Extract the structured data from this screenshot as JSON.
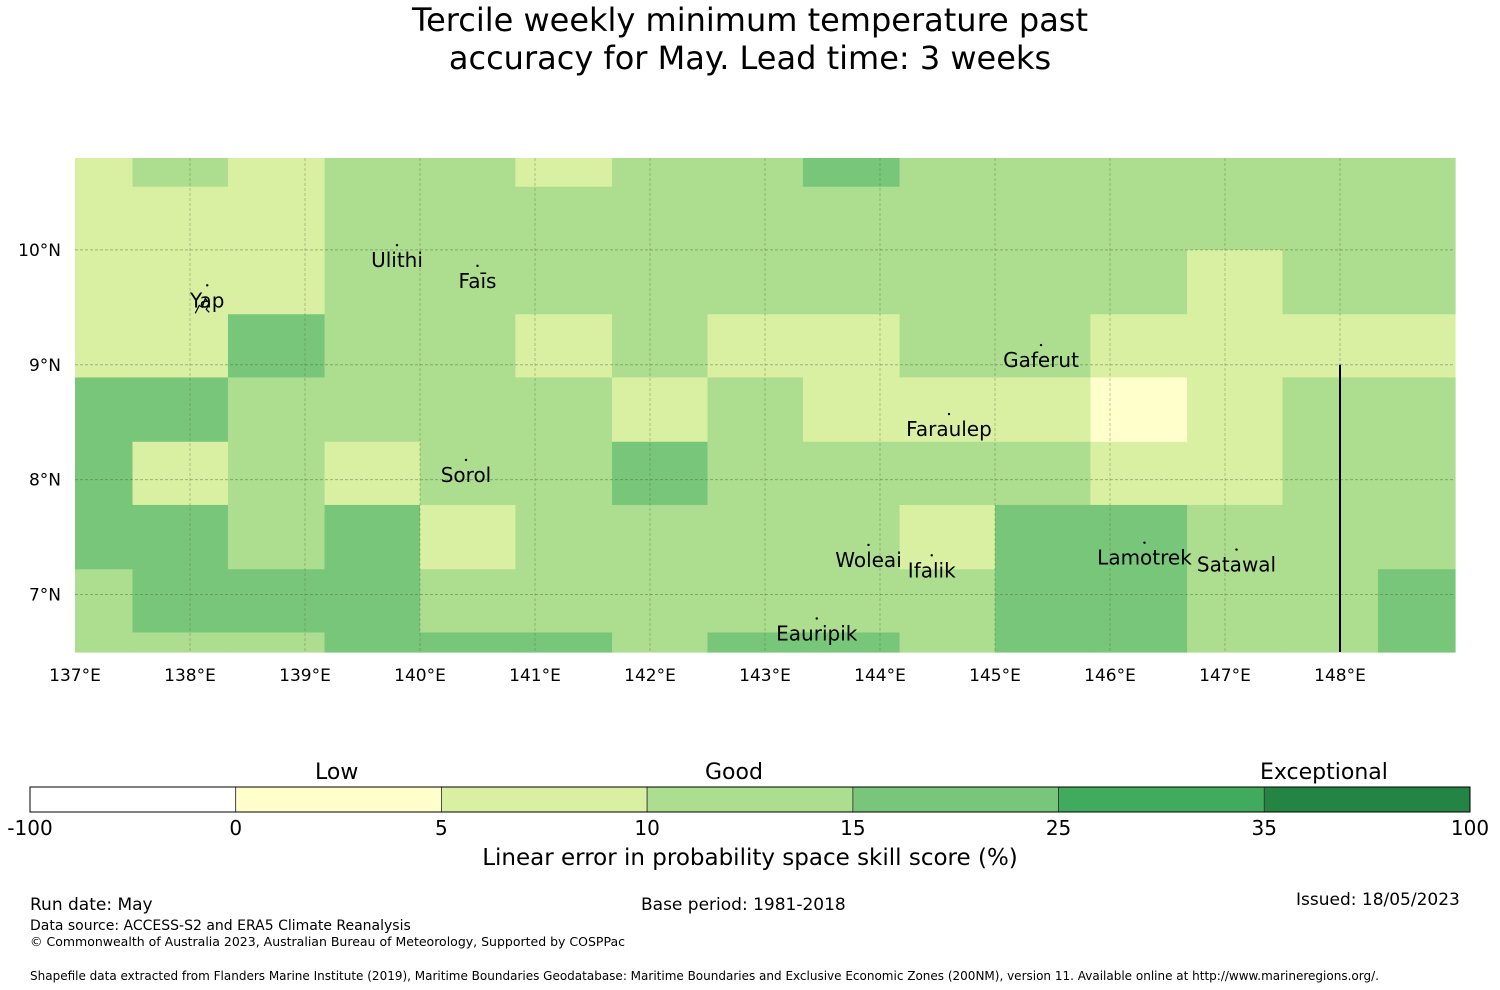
{
  "title": {
    "line1": "Tercile weekly minimum temperature past",
    "line2": "accuracy for May. Lead time: 3 weeks"
  },
  "map": {
    "lon_range": [
      137.0,
      149.0
    ],
    "lat_range": [
      6.5,
      10.8
    ],
    "x_ticks": [
      "137°E",
      "138°E",
      "139°E",
      "140°E",
      "141°E",
      "142°E",
      "143°E",
      "144°E",
      "145°E",
      "146°E",
      "147°E",
      "148°E"
    ],
    "x_tick_values": [
      137,
      138,
      139,
      140,
      141,
      142,
      143,
      144,
      145,
      146,
      147,
      148
    ],
    "y_ticks": [
      "10°N",
      "9°N",
      "8°N",
      "7°N"
    ],
    "y_tick_values": [
      10,
      9,
      8,
      7
    ],
    "grid": true,
    "places": [
      {
        "name": "Ulithi",
        "lon": 139.8,
        "lat": 9.85
      },
      {
        "name": "Faīs",
        "lon": 140.5,
        "lat": 9.67
      },
      {
        "name": "Yap",
        "lon": 138.15,
        "lat": 9.5
      },
      {
        "name": "Gaferut",
        "lon": 145.4,
        "lat": 8.98
      },
      {
        "name": "Faraulep",
        "lon": 144.6,
        "lat": 8.38
      },
      {
        "name": "Sorol",
        "lon": 140.4,
        "lat": 7.98
      },
      {
        "name": "Woleai",
        "lon": 143.9,
        "lat": 7.24
      },
      {
        "name": "Ifalik",
        "lon": 144.45,
        "lat": 7.15
      },
      {
        "name": "Lamotrek",
        "lon": 146.3,
        "lat": 7.26
      },
      {
        "name": "Satawal",
        "lon": 147.1,
        "lat": 7.2
      },
      {
        "name": "Eauripik",
        "lon": 143.45,
        "lat": 6.6
      }
    ],
    "boundary_line": {
      "lon": 148.0,
      "lat_from": 6.5,
      "lat_to": 9.0
    }
  },
  "grid_cells": {
    "col_lon_edges": [
      137.0,
      137.5,
      138.33,
      139.17,
      140.0,
      140.83,
      141.67,
      142.5,
      143.33,
      144.17,
      145.0,
      145.83,
      146.67,
      147.5,
      148.33,
      149.0
    ],
    "row_lat_edges": [
      10.8,
      10.55,
      10.0,
      9.44,
      8.89,
      8.33,
      7.78,
      7.22,
      6.67,
      6.5
    ],
    "levels_legend": "1=0-5, 2=5-10, 3=10-15, 4=15-25",
    "rows": [
      [
        2,
        3,
        2,
        3,
        3,
        2,
        3,
        3,
        4,
        3,
        3,
        3,
        3,
        3,
        3
      ],
      [
        2,
        2,
        2,
        3,
        3,
        3,
        3,
        3,
        3,
        3,
        3,
        3,
        3,
        3,
        3
      ],
      [
        2,
        2,
        2,
        3,
        3,
        3,
        3,
        3,
        3,
        3,
        3,
        3,
        2,
        3,
        3
      ],
      [
        2,
        2,
        4,
        3,
        3,
        2,
        3,
        2,
        2,
        3,
        3,
        2,
        2,
        2,
        2
      ],
      [
        4,
        4,
        3,
        3,
        3,
        3,
        2,
        3,
        2,
        2,
        2,
        1,
        2,
        3,
        3
      ],
      [
        4,
        2,
        3,
        2,
        3,
        3,
        4,
        3,
        3,
        3,
        3,
        2,
        2,
        3,
        3
      ],
      [
        4,
        4,
        3,
        4,
        2,
        3,
        3,
        3,
        3,
        2,
        4,
        4,
        3,
        3,
        3
      ],
      [
        3,
        4,
        4,
        4,
        3,
        3,
        3,
        3,
        3,
        3,
        4,
        4,
        3,
        3,
        4
      ],
      [
        3,
        3,
        3,
        4,
        4,
        4,
        3,
        4,
        4,
        3,
        4,
        4,
        3,
        3,
        4
      ]
    ]
  },
  "colorbar": {
    "boundaries": [
      "-100",
      "0",
      "5",
      "10",
      "15",
      "25",
      "35",
      "100"
    ],
    "colors": [
      "#ffffff",
      "#ffffcc",
      "#d9f0a3",
      "#addd8e",
      "#78c679",
      "#41ab5d",
      "#238443"
    ],
    "category_labels": [
      "Low",
      "Good",
      "Exceptional"
    ],
    "title": "Linear error in probability space skill score (%)"
  },
  "footer": {
    "run_date": "Run date: May",
    "base_period": "Base period: 1981-2018",
    "issued": "Issued: 18/05/2023",
    "data_source": "Data source: ACCESS-S2 and ERA5 Climate Reanalysis",
    "copyright": "© Commonwealth of Australia 2023, Australian Bureau of Meteorology, Supported by COSPPac",
    "shapefile": "Shapefile data extracted from Flanders Marine Institute (2019), Maritime Boundaries Geodatabase: Maritime Boundaries and Exclusive Economic Zones (200NM), version 11. Available online at http://www.marineregions.org/."
  }
}
